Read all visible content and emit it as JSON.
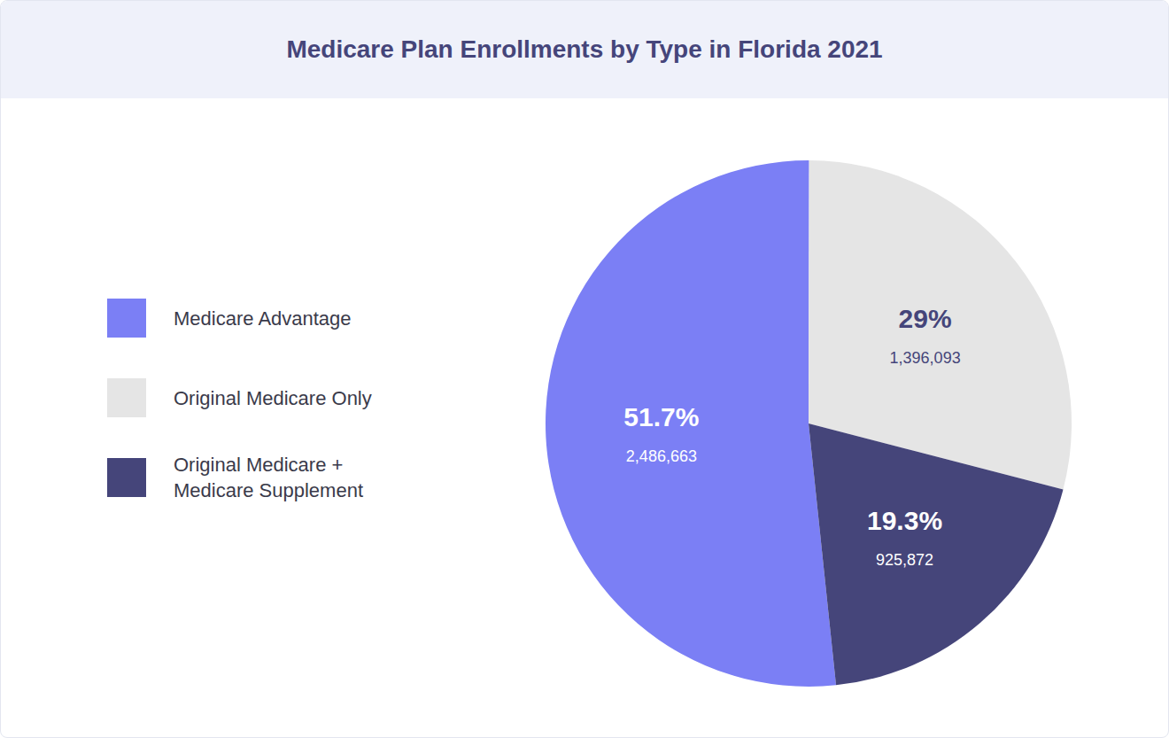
{
  "chart_data": {
    "type": "pie",
    "title": "Medicare Plan Enrollments by Type in Florida 2021",
    "categories": [
      "Medicare Advantage",
      "Original Medicare Only",
      "Original Medicare + Medicare Supplement"
    ],
    "values": [
      51.7,
      29,
      19.3
    ],
    "value_labels": [
      "51.7%",
      "29%",
      "19.3%"
    ],
    "counts": [
      2486663,
      1396093,
      925872
    ],
    "colors": [
      "#7b7ff5",
      "#e5e5e5",
      "#45457a"
    ],
    "legend": "left",
    "data_labels": true
  }
}
